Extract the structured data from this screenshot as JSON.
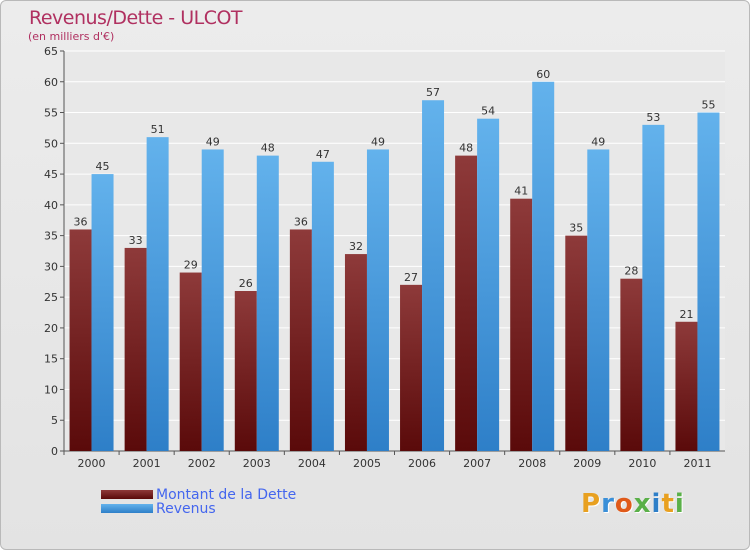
{
  "title": "Revenus/Dette - ULCOT",
  "subtitle": "(en milliers d'€)",
  "logo_text": "Proxiti",
  "colors": {
    "title": "#b03060",
    "dette_dark": "#5a0a0a",
    "dette_light": "#8e3a3a",
    "revenus_dark": "#2e7fc8",
    "revenus_light": "#63b2ec",
    "legend_text": "#4466ee"
  },
  "chart_data": {
    "type": "bar",
    "categories": [
      "2000",
      "2001",
      "2002",
      "2003",
      "2004",
      "2005",
      "2006",
      "2007",
      "2008",
      "2009",
      "2010",
      "2011"
    ],
    "series": [
      {
        "name": "Montant de la Dette",
        "values": [
          36,
          33,
          29,
          26,
          36,
          32,
          27,
          48,
          41,
          35,
          28,
          21
        ]
      },
      {
        "name": "Revenus",
        "values": [
          45,
          51,
          49,
          48,
          47,
          49,
          57,
          54,
          60,
          49,
          53,
          55
        ]
      }
    ],
    "ylim": [
      0,
      65
    ],
    "yticks": [
      0,
      5,
      10,
      15,
      20,
      25,
      30,
      35,
      40,
      45,
      50,
      55,
      60,
      65
    ],
    "grid": true,
    "legend_position": "bottom-left"
  }
}
